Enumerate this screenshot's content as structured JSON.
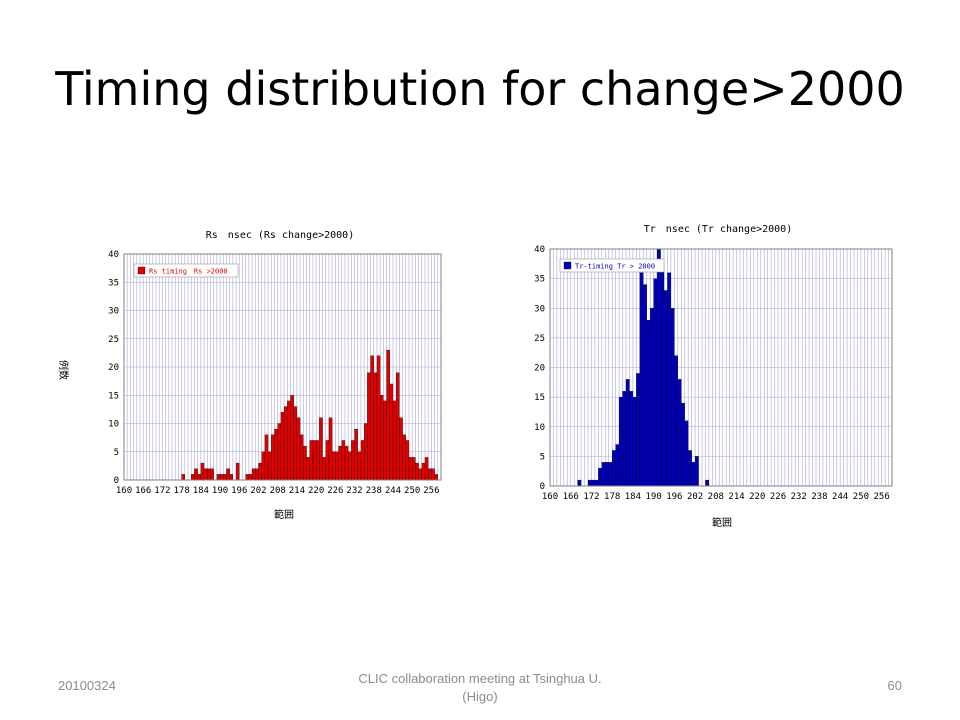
{
  "slide": {
    "title": "Timing distribution for change>2000"
  },
  "footer": {
    "date": "20100324",
    "center_line1": "CLIC collaboration meeting at Tsinghua U.",
    "center_line2": "(Higo)",
    "page": "60"
  },
  "colors": {
    "left_bars": "#e00000",
    "right_bars": "#0000b8",
    "grid": "#a8a8d8",
    "plot_border": "#808080"
  },
  "chart_data": [
    {
      "type": "bar",
      "title": "Rs　nsec (Rs change>2000)",
      "xlabel": "範囲",
      "ylabel": "例数",
      "legend": "Rs timing　Rs >2000",
      "legend_position": "top-left",
      "grid": true,
      "xlim": [
        160,
        259
      ],
      "ylim": [
        0,
        40
      ],
      "yticks": [
        0,
        5,
        10,
        15,
        20,
        25,
        30,
        35,
        40
      ],
      "xticks": [
        160,
        166,
        172,
        178,
        184,
        190,
        196,
        202,
        208,
        214,
        220,
        226,
        232,
        238,
        244,
        250,
        256
      ],
      "x_start": 160,
      "bin_width": 1,
      "values": [
        0,
        0,
        0,
        0,
        0,
        0,
        0,
        0,
        0,
        0,
        0,
        0,
        0,
        0,
        0,
        0,
        0,
        0,
        1,
        0,
        0,
        1,
        2,
        1,
        3,
        2,
        2,
        2,
        0,
        1,
        1,
        1,
        2,
        1,
        0,
        3,
        0,
        0,
        1,
        1,
        2,
        2,
        3,
        5,
        8,
        5,
        8,
        9,
        10,
        12,
        13,
        14,
        15,
        13,
        11,
        8,
        6,
        4,
        7,
        7,
        7,
        11,
        4,
        7,
        11,
        5,
        5,
        6,
        7,
        6,
        5,
        7,
        9,
        5,
        7,
        10,
        19,
        22,
        19,
        22,
        15,
        14,
        23,
        17,
        14,
        19,
        11,
        8,
        7,
        4,
        4,
        3,
        2,
        3,
        4,
        2,
        2,
        1,
        0,
        0
      ],
      "series_name": "Rs timing　Rs >2000"
    },
    {
      "type": "bar",
      "title": "Tr　nsec (Tr change>2000)",
      "xlabel": "範囲",
      "ylabel": "",
      "legend": "Tr-timing Tr > 2000",
      "legend_position": "top-left",
      "grid": true,
      "xlim": [
        160,
        259
      ],
      "ylim": [
        0,
        40
      ],
      "yticks": [
        0,
        5,
        10,
        15,
        20,
        25,
        30,
        35,
        40
      ],
      "xticks": [
        160,
        166,
        172,
        178,
        184,
        190,
        196,
        202,
        208,
        214,
        220,
        226,
        232,
        238,
        244,
        250,
        256
      ],
      "x_start": 160,
      "bin_width": 1,
      "values": [
        0,
        0,
        0,
        0,
        0,
        0,
        0,
        0,
        1,
        0,
        0,
        1,
        1,
        1,
        3,
        4,
        4,
        4,
        6,
        7,
        15,
        16,
        18,
        16,
        15,
        19,
        36,
        34,
        28,
        30,
        35,
        40,
        37,
        33,
        36,
        30,
        22,
        18,
        14,
        11,
        6,
        4,
        5,
        0,
        0,
        1,
        0,
        0,
        0,
        0,
        0,
        0,
        0,
        0,
        0,
        0,
        0,
        0,
        0,
        0,
        0,
        0,
        0,
        0,
        0,
        0,
        0,
        0,
        0,
        0,
        0,
        0,
        0,
        0,
        0,
        0,
        0,
        0,
        0,
        0,
        0,
        0,
        0,
        0,
        0,
        0,
        0,
        0,
        0,
        0,
        0,
        0,
        0,
        0,
        0,
        0,
        0,
        0,
        0,
        0
      ],
      "series_name": "Tr-timing Tr > 2000"
    }
  ]
}
